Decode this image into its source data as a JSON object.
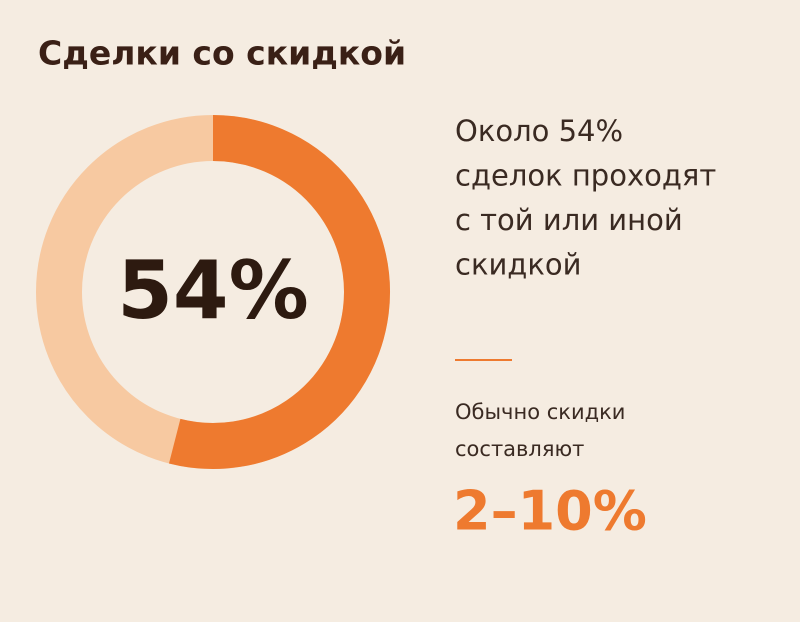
{
  "chart_data": {
    "type": "donut",
    "title": "Сделки со скидкой",
    "values": [
      54
    ],
    "value_labels": [
      "54%"
    ],
    "color": "#ee7a2f",
    "track_color": "#f7c9a1",
    "description": [
      "Около 54%",
      "сделок проходят",
      "с той или иной",
      "скидкой"
    ],
    "note": [
      "Обычно скидки",
      "составляют"
    ],
    "range_label": "2–10%"
  }
}
